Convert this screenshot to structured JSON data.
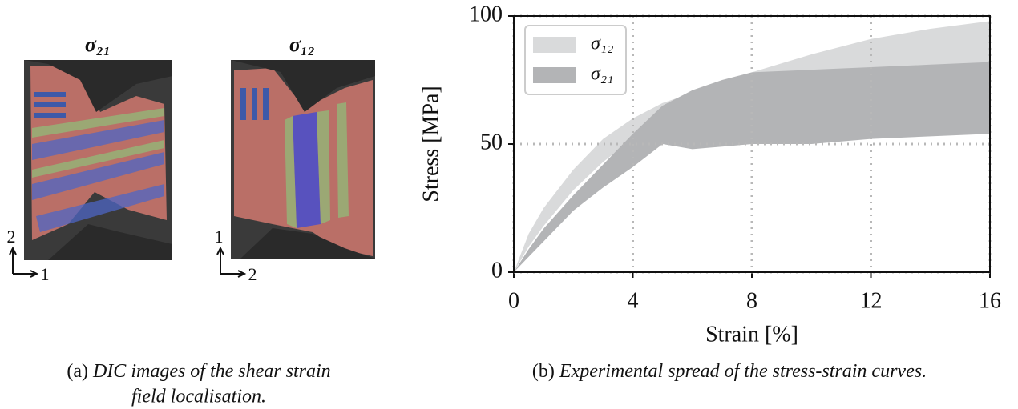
{
  "figure": {
    "panel_a": {
      "images": [
        {
          "title": "σ₂₁",
          "axis_up": "2",
          "axis_right": "1"
        },
        {
          "title": "σ₁₂",
          "axis_up": "1",
          "axis_right": "2"
        }
      ],
      "caption_label": "(a)",
      "caption_lines": [
        "DIC images of the shear strain",
        "field localisation."
      ]
    },
    "panel_b": {
      "caption_label": "(b)",
      "caption": "Experimental spread of the stress-strain curves."
    }
  },
  "chart_data": {
    "type": "band",
    "x_label": "Strain [%]",
    "y_label": "Stress [MPa]",
    "x": [
      0,
      0.5,
      1,
      2,
      3,
      4,
      5,
      6,
      7,
      8,
      10,
      12,
      14,
      16
    ],
    "series": [
      {
        "name": "σ₁₂",
        "color": "#d9dadb",
        "upper": [
          0,
          15,
          25,
          40,
          52,
          60,
          66,
          70,
          74,
          78,
          85,
          91,
          95,
          98
        ],
        "lower": [
          0,
          10,
          18,
          32,
          43,
          52,
          60,
          66,
          70,
          73,
          76,
          78,
          80,
          81
        ]
      },
      {
        "name": "σ₂₁",
        "color": "#b3b4b6",
        "upper": [
          0,
          9,
          17,
          30,
          42,
          54,
          65,
          71,
          75,
          78,
          79,
          80,
          81,
          82
        ],
        "lower": [
          0,
          6,
          12,
          24,
          33,
          41,
          50,
          48,
          49,
          50,
          50,
          52,
          53,
          54
        ]
      }
    ],
    "xlim": [
      0,
      16
    ],
    "ylim": [
      0,
      100
    ],
    "xticks": [
      0,
      4,
      8,
      12,
      16
    ],
    "yticks": [
      0,
      50,
      100
    ],
    "grid": true,
    "legend": "upper left"
  }
}
